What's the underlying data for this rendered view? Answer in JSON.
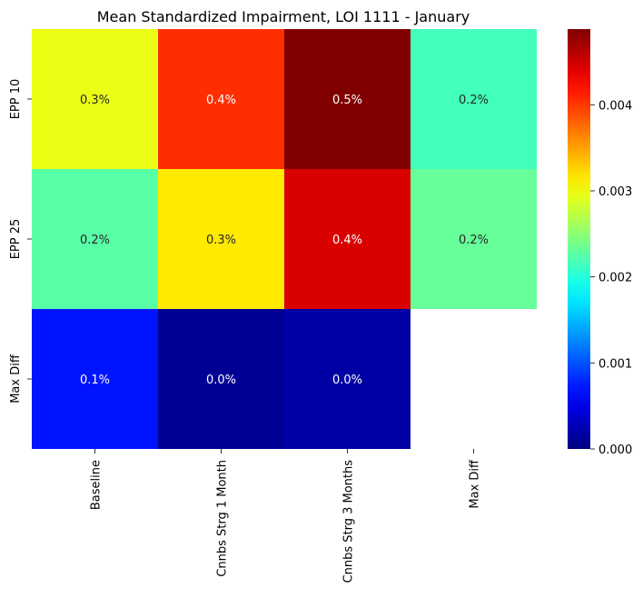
{
  "chart_data": {
    "type": "heatmap",
    "title": "Mean Standardized Impairment, LOI 1111 - January",
    "xlabel": "",
    "ylabel": "",
    "columns": [
      "Baseline",
      "Cnnbs Strg 1 Month",
      "Cnnbs Strg 3 Months",
      "Max Diff"
    ],
    "rows": [
      "EPP 10",
      "EPP 25",
      "Max Diff"
    ],
    "values": [
      [
        0.00295,
        0.00405,
        0.00488,
        0.00215
      ],
      [
        0.00225,
        0.00315,
        0.00445,
        0.00232
      ],
      [
        0.0007,
        0.0001,
        0.00018,
        null
      ]
    ],
    "annotations": [
      [
        "0.3%",
        "0.4%",
        "0.5%",
        "0.2%"
      ],
      [
        "0.2%",
        "0.3%",
        "0.4%",
        "0.2%"
      ],
      [
        "0.1%",
        "0.0%",
        "0.0%",
        ""
      ]
    ],
    "colormap": "jet",
    "colorbar": {
      "range": [
        0,
        0.00488
      ],
      "ticks": [
        0.0,
        0.001,
        0.002,
        0.003,
        0.004
      ],
      "tick_labels": [
        "0.000",
        "0.001",
        "0.002",
        "0.003",
        "0.004"
      ]
    },
    "grid": false,
    "legend": "colorbar-right"
  }
}
